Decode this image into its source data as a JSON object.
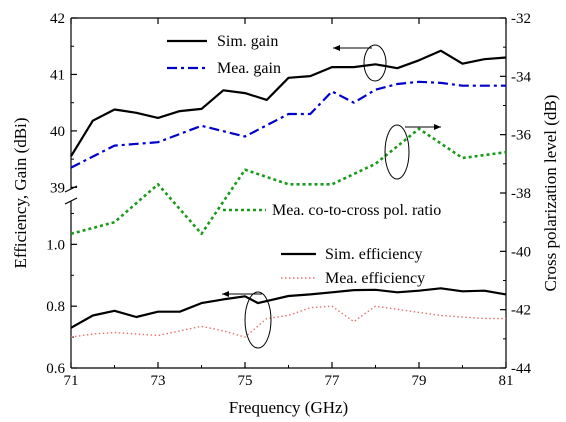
{
  "chart_data": {
    "type": "line",
    "xlabel": "Frequency (GHz)",
    "ylabel_left": "Efficiency, Gain (dBi)",
    "ylabel_right": "Cross polarization level (dB)",
    "x_ticks": [
      "71",
      "73",
      "75",
      "77",
      "79",
      "81"
    ],
    "xlim": [
      71,
      81
    ],
    "gain_axis": {
      "ticks": [
        "39",
        "40",
        "41",
        "42"
      ],
      "ylim": [
        38.9,
        42
      ]
    },
    "efficiency_axis": {
      "ticks": [
        "0.6",
        "0.8",
        "1.0"
      ],
      "ylim": [
        0.6,
        1.15
      ]
    },
    "right_axis": {
      "ticks": [
        "-32",
        "-34",
        "-36",
        "-38",
        "-40",
        "-42",
        "-44"
      ],
      "ylim": [
        -44,
        -32
      ]
    },
    "series": [
      {
        "name": "Sim. gain",
        "axis": "gain",
        "color": "#000000",
        "style": "solid",
        "x": [
          71,
          71.5,
          72,
          72.5,
          73,
          73.5,
          74,
          74.5,
          75,
          75.5,
          76,
          76.5,
          77,
          77.5,
          78,
          78.5,
          79,
          79.5,
          80,
          80.5,
          81
        ],
        "values": [
          39.55,
          40.18,
          40.38,
          40.32,
          40.23,
          40.35,
          40.39,
          40.72,
          40.67,
          40.55,
          40.94,
          40.97,
          41.13,
          41.13,
          41.18,
          41.11,
          41.25,
          41.42,
          41.19,
          41.27,
          41.3
        ]
      },
      {
        "name": "Mea. gain",
        "axis": "gain",
        "color": "#0000cc",
        "style": "dashdot",
        "x": [
          71,
          72,
          73,
          74,
          75,
          76,
          76.5,
          77,
          77.5,
          78,
          78.5,
          79,
          79.5,
          80,
          80.5,
          81
        ],
        "values": [
          39.35,
          39.74,
          39.8,
          40.09,
          39.9,
          40.3,
          40.3,
          40.7,
          40.5,
          40.73,
          40.83,
          40.87,
          40.85,
          40.8,
          40.8,
          40.8
        ]
      },
      {
        "name": "Mea. co-to-cross pol. ratio",
        "axis": "right",
        "color": "#1a9a1a",
        "style": "dotted",
        "x": [
          71,
          72,
          73,
          74,
          75,
          76,
          77,
          78,
          79,
          80,
          81
        ],
        "values": [
          -39.4,
          -39,
          -37.7,
          -39.4,
          -37.2,
          -37.7,
          -37.7,
          -37,
          -35.8,
          -36.8,
          -36.6
        ]
      },
      {
        "name": "Sim. efficiency",
        "axis": "efficiency",
        "color": "#000000",
        "style": "solid",
        "x": [
          71,
          71.5,
          72,
          72.5,
          73,
          73.5,
          74,
          74.5,
          75,
          75.3,
          76,
          76.5,
          77,
          77.5,
          78,
          78.5,
          79,
          79.5,
          80,
          80.5,
          81
        ],
        "values": [
          0.73,
          0.77,
          0.785,
          0.765,
          0.782,
          0.782,
          0.81,
          0.822,
          0.832,
          0.81,
          0.833,
          0.838,
          0.845,
          0.852,
          0.853,
          0.845,
          0.85,
          0.858,
          0.848,
          0.85,
          0.838
        ]
      },
      {
        "name": "Mea. efficiency",
        "axis": "efficiency",
        "color": "#e87070",
        "style": "dotted",
        "x": [
          71,
          71.5,
          72,
          72.5,
          73,
          73.5,
          74,
          74.5,
          75,
          75.5,
          76,
          76.5,
          77,
          77.5,
          78,
          78.5,
          79,
          79.5,
          80,
          80.5,
          81
        ],
        "values": [
          0.7,
          0.71,
          0.715,
          0.71,
          0.705,
          0.72,
          0.735,
          0.72,
          0.7,
          0.76,
          0.77,
          0.795,
          0.8,
          0.75,
          0.8,
          0.79,
          0.78,
          0.77,
          0.765,
          0.76,
          0.76
        ]
      }
    ],
    "legend": [
      {
        "label": "Sim. gain",
        "series": 0
      },
      {
        "label": "Mea. gain",
        "series": 1
      },
      {
        "label": "Mea. co-to-cross pol. ratio",
        "series": 2
      },
      {
        "label": "Sim. efficiency",
        "series": 3
      },
      {
        "label": "Mea. efficiency",
        "series": 4
      }
    ],
    "grid": false
  }
}
